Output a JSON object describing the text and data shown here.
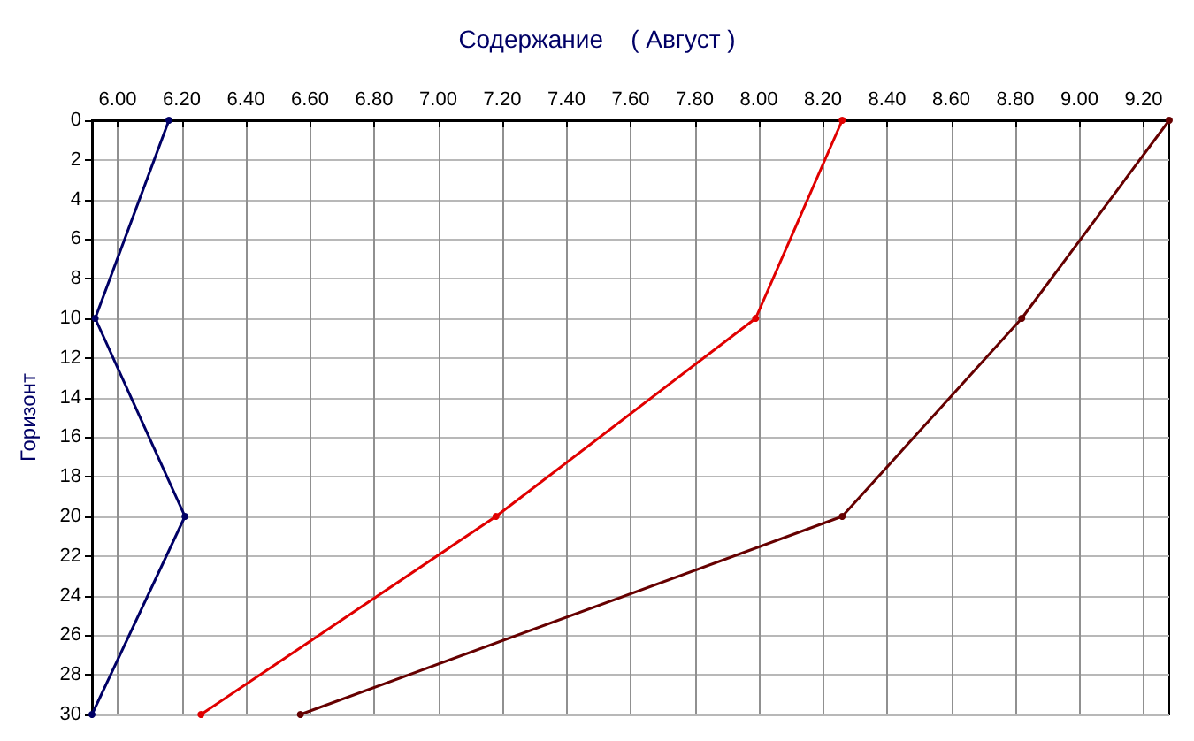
{
  "chart_data": {
    "type": "line",
    "title": "Содержание    ( Август )",
    "ylabel": "Горизонт",
    "xlim": [
      5.92,
      9.28
    ],
    "xticks": [
      {
        "value": 6,
        "label": "6.00"
      },
      {
        "value": 6.2,
        "label": "6.20"
      },
      {
        "value": 6.4,
        "label": "6.40"
      },
      {
        "value": 6.6,
        "label": "6.60"
      },
      {
        "value": 6.8,
        "label": "6.80"
      },
      {
        "value": 7,
        "label": "7.00"
      },
      {
        "value": 7.2,
        "label": "7.20"
      },
      {
        "value": 7.4,
        "label": "7.40"
      },
      {
        "value": 7.6,
        "label": "7.60"
      },
      {
        "value": 7.8,
        "label": "7.80"
      },
      {
        "value": 8,
        "label": "8.00"
      },
      {
        "value": 8.2,
        "label": "8.20"
      },
      {
        "value": 8.4,
        "label": "8.40"
      },
      {
        "value": 8.6,
        "label": "8.60"
      },
      {
        "value": 8.8,
        "label": "8.80"
      },
      {
        "value": 9,
        "label": "9.00"
      },
      {
        "value": 9.2,
        "label": "9.20"
      }
    ],
    "ylim": [
      30,
      0
    ],
    "yticks": [
      0,
      2,
      4,
      6,
      8,
      10,
      12,
      14,
      16,
      18,
      20,
      22,
      24,
      26,
      28,
      30
    ],
    "grid": true,
    "marker": "circle",
    "line_style": "solid",
    "series": [
      {
        "color": "#000066",
        "x": [
          6.16,
          5.93,
          6.21,
          5.92
        ],
        "values": [
          0,
          10,
          20,
          30
        ]
      },
      {
        "color": "#e00000",
        "x": [
          8.26,
          7.99,
          7.18,
          6.26
        ],
        "values": [
          0,
          10,
          20,
          30
        ]
      },
      {
        "color": "#660000",
        "x": [
          9.28,
          8.82,
          8.26,
          6.57
        ],
        "values": [
          0,
          10,
          20,
          30
        ]
      }
    ]
  }
}
